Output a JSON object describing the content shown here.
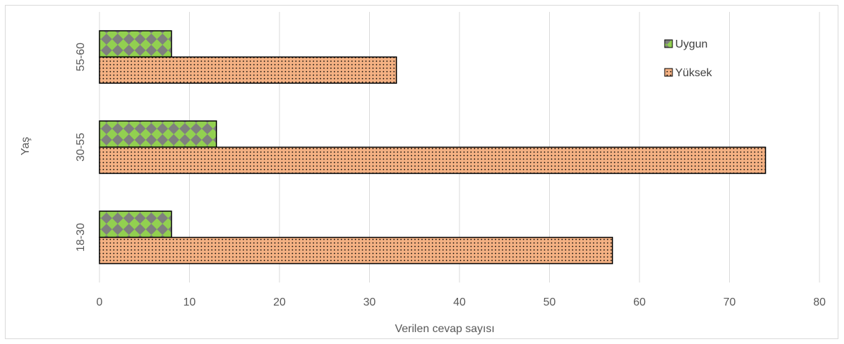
{
  "chart_data": {
    "type": "bar",
    "orientation": "horizontal",
    "categories": [
      "55-60",
      "30-55",
      "18-30"
    ],
    "series": [
      {
        "name": "Uygun",
        "values": [
          8,
          13,
          8
        ],
        "color": "#92d050",
        "pattern_color": "#7f7f7f",
        "pattern": "checker"
      },
      {
        "name": "Yüksek",
        "values": [
          33,
          74,
          57
        ],
        "color": "#f4b183",
        "pattern_color": "#000000",
        "pattern": "dots"
      }
    ],
    "xlabel": "Verilen cevap sayısı",
    "ylabel": "Yaş",
    "xlim": [
      0,
      80
    ],
    "xticks": [
      0,
      10,
      20,
      30,
      40,
      50,
      60,
      70,
      80
    ],
    "grid": true,
    "legend_position": "top-right"
  }
}
